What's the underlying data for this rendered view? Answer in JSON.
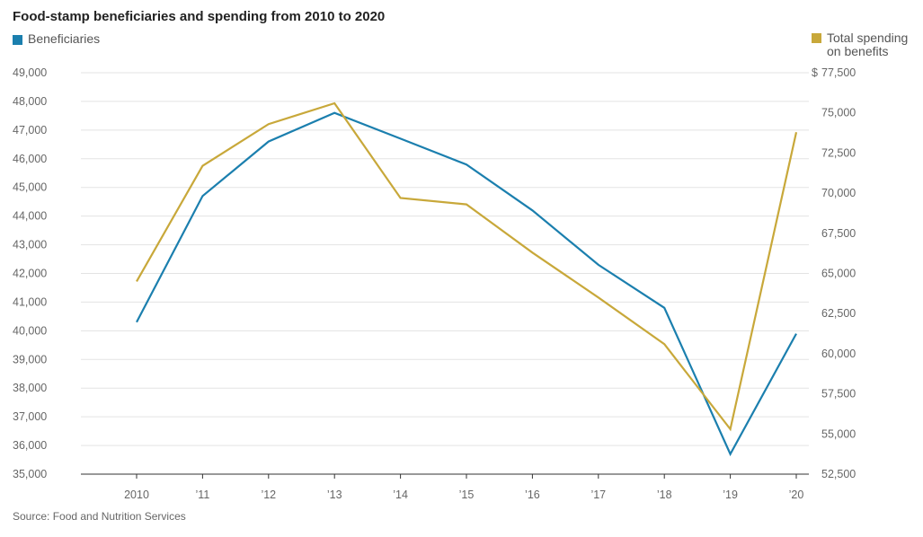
{
  "title": "Food-stamp beneficiaries and spending from 2010 to 2020",
  "source": "Source: Food and Nutrition Services",
  "colors": {
    "beneficiaries": "#1b7fae",
    "spending": "#c8a83a",
    "grid": "#e3e3e3",
    "baseline": "#333333"
  },
  "legend": {
    "left": "Beneficiaries",
    "right": "Total spending\non benefits"
  },
  "right_axis_currency": "$",
  "chart_data": {
    "type": "line",
    "title": "Food-stamp beneficiaries and spending from 2010 to 2020",
    "categories": [
      "2010",
      "’11",
      "’12",
      "’13",
      "’14",
      "’15",
      "’16",
      "’17",
      "’18",
      "’19",
      "’20"
    ],
    "y_left": {
      "lim": [
        35000,
        49000
      ],
      "ticks": [
        "49,000",
        "48,000",
        "47,000",
        "46,000",
        "45,000",
        "44,000",
        "43,000",
        "42,000",
        "41,000",
        "40,000",
        "39,000",
        "38,000",
        "37,000",
        "36,000",
        "35,000"
      ]
    },
    "y_right": {
      "lim": [
        52500,
        77500
      ],
      "ticks": [
        "77,500",
        "75,000",
        "72,500",
        "70,000",
        "67,500",
        "65,000",
        "62,500",
        "60,000",
        "57,500",
        "55,000",
        "52,500"
      ]
    },
    "series": [
      {
        "name": "Beneficiaries",
        "axis": "left",
        "values": [
          40300,
          44700,
          46600,
          47600,
          46700,
          45800,
          44200,
          42300,
          40800,
          35700,
          39900
        ]
      },
      {
        "name": "Total spending on benefits",
        "axis": "right",
        "values": [
          64500,
          71700,
          74300,
          75600,
          69700,
          69300,
          66300,
          63500,
          60600,
          55300,
          73800
        ]
      }
    ],
    "grid": true
  }
}
